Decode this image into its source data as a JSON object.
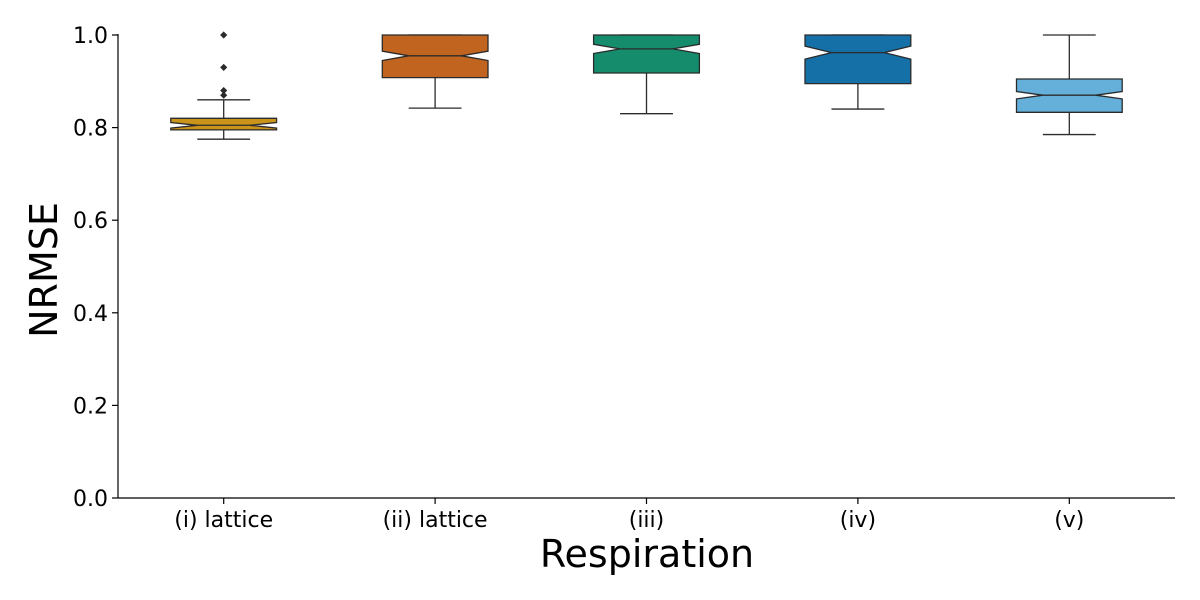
{
  "chart_data": {
    "type": "boxplot",
    "title": "",
    "xlabel": "Respiration",
    "ylabel": "NRMSE",
    "ylim": [
      0.0,
      1.0
    ],
    "yticks": [
      0.0,
      0.2,
      0.4,
      0.6,
      0.8,
      1.0
    ],
    "ytick_labels": [
      "0.0",
      "0.2",
      "0.4",
      "0.6",
      "0.8",
      "1.0"
    ],
    "notched": true,
    "grid": false,
    "legend": "none",
    "boxes": [
      {
        "label": "(i) lattice",
        "color": "#C99419",
        "whisker_low": 0.775,
        "q1": 0.795,
        "median": 0.805,
        "q3": 0.82,
        "whisker_high": 0.86,
        "notch_low": 0.799,
        "notch_high": 0.811,
        "outliers": [
          0.87,
          0.88,
          0.93,
          1.0
        ]
      },
      {
        "label": "(ii) lattice",
        "color": "#C0641F",
        "whisker_low": 0.842,
        "q1": 0.908,
        "median": 0.955,
        "q3": 1.0,
        "whisker_high": 1.0,
        "notch_low": 0.945,
        "notch_high": 0.965,
        "outliers": []
      },
      {
        "label": "(iii)",
        "color": "#158C6C",
        "whisker_low": 0.83,
        "q1": 0.918,
        "median": 0.97,
        "q3": 1.0,
        "whisker_high": 1.0,
        "notch_low": 0.96,
        "notch_high": 0.98,
        "outliers": []
      },
      {
        "label": "(iv)",
        "color": "#1470A6",
        "whisker_low": 0.84,
        "q1": 0.895,
        "median": 0.962,
        "q3": 1.0,
        "whisker_high": 1.0,
        "notch_low": 0.948,
        "notch_high": 0.976,
        "outliers": []
      },
      {
        "label": "(v)",
        "color": "#64B0DA",
        "whisker_low": 0.785,
        "q1": 0.833,
        "median": 0.87,
        "q3": 0.905,
        "whisker_high": 1.0,
        "notch_low": 0.862,
        "notch_high": 0.878,
        "outliers": []
      }
    ]
  }
}
